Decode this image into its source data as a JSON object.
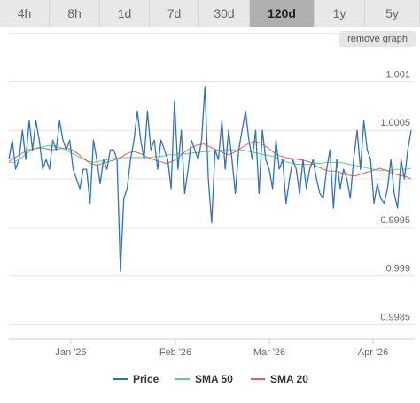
{
  "timeframes": [
    {
      "label": "4h",
      "active": false
    },
    {
      "label": "8h",
      "active": false
    },
    {
      "label": "1d",
      "active": false
    },
    {
      "label": "7d",
      "active": false
    },
    {
      "label": "30d",
      "active": false
    },
    {
      "label": "120d",
      "active": true
    },
    {
      "label": "1y",
      "active": false
    },
    {
      "label": "5y",
      "active": false
    }
  ],
  "remove_graph_label": "remove graph",
  "colors": {
    "price": "#2f73b8",
    "sma50": "#5fcf84",
    "sma20": "#e06060",
    "grid": "#e6e6e6",
    "axis_text": "#666666",
    "tab_bg": "#e8e8e8",
    "tab_active_bg": "#b0b0b0"
  },
  "chart_data": {
    "type": "line",
    "x_tick_labels": [
      "Jan '26",
      "Feb '26",
      "Mar '26",
      "Apr '26"
    ],
    "y_tick_labels": [
      "1.001",
      "1.0005",
      "0.9995",
      "0.999",
      "0.9985"
    ],
    "ylim": [
      0.99835,
      1.00125
    ],
    "grid": true,
    "legend_placement": "bottom",
    "series": [
      {
        "name": "Price",
        "values": [
          1.0002,
          1.0004,
          1.0001,
          1.0002,
          1.0005,
          1.0002,
          1.0006,
          1.0003,
          1.0006,
          1.0004,
          1.0001,
          1.0002,
          1.0001,
          1.0004,
          1.0003,
          1.0006,
          1.0004,
          1.0003,
          1.0004,
          1.0001,
          1.0,
          0.9999,
          1.0001,
          1.0001,
          0.99975,
          1.0004,
          1.0002,
          0.99995,
          1.0002,
          1.0001,
          1.0003,
          1.0003,
          1.0002,
          0.99905,
          0.9998,
          0.9999,
          1.0002,
          1.0004,
          1.0007,
          1.0004,
          1.0002,
          1.0007,
          1.0003,
          1.0004,
          1.0001,
          1.0004,
          1.0003,
          1.0002,
          0.9999,
          1.0008,
          1.0001,
          1.0005,
          0.99985,
          1.0001,
          1.0004,
          1.0003,
          1.0002,
          1.0004,
          1.00095,
          1.0,
          0.99955,
          1.0003,
          1.0002,
          1.0006,
          1.0001,
          1.0005,
          1.0002,
          0.99985,
          1.0003,
          1.0005,
          1.0007,
          1.0004,
          1.0002,
          1.0005,
          0.99985,
          1.0005,
          1.0002,
          1.0001,
          0.9999,
          1.0004,
          1.0001,
          1.0002,
          0.99975,
          1.0,
          1.0002,
          1.0001,
          0.99985,
          1.0002,
          0.9999,
          1.0001,
          1.0002,
          1.0,
          0.99985,
          0.9998,
          1.0001,
          1.0003,
          0.9997,
          1.0002,
          0.9999,
          1.0001,
          1.0,
          0.9998,
          1.0002,
          1.0005,
          1.0001,
          1.0006,
          1.0003,
          1.0002,
          0.99975,
          0.99995,
          0.9998,
          0.99975,
          0.9999,
          1.0002,
          0.99985,
          0.9997,
          1.0002,
          1.0,
          1.0003,
          1.0005
        ]
      },
      {
        "name": "SMA 50",
        "values": [
          1.00017,
          1.00017,
          1.0002,
          1.00023,
          1.00027,
          1.0003,
          1.00032,
          1.00033,
          1.00034,
          1.00034,
          1.00034,
          1.00032,
          1.0003,
          1.00027,
          1.00025,
          1.00022,
          1.0002,
          1.00018,
          1.00017,
          1.00018,
          1.00019,
          1.0002,
          1.00021,
          1.00021,
          1.00022,
          1.00022,
          1.00022,
          1.00022,
          1.00022,
          1.00022,
          1.00022,
          1.00023,
          1.00023,
          1.00024,
          1.00025,
          1.00025,
          1.00026,
          1.00026,
          1.00026,
          1.00027,
          1.00027,
          1.00028,
          1.00028,
          1.00029,
          1.00029,
          1.0003,
          1.0003,
          1.0003,
          1.0003,
          1.0003,
          1.00029,
          1.00028,
          1.00027,
          1.00026,
          1.00025,
          1.00024,
          1.00023,
          1.00021,
          1.00019,
          1.00017,
          1.00016,
          1.00015,
          1.00015,
          1.00015,
          1.00015,
          1.00016,
          1.00016,
          1.00017,
          1.00017,
          1.00017,
          1.00017,
          1.00016,
          1.00015,
          1.00014,
          1.00013,
          1.00012,
          1.00011,
          1.0001,
          1.00009,
          1.00009,
          1.00009,
          1.00009,
          1.0001,
          1.0001,
          1.0001,
          1.00011
        ]
      },
      {
        "name": "SMA 20",
        "values": [
          1.00018,
          1.00022,
          1.00026,
          1.0003,
          1.00031,
          1.00032,
          1.00031,
          1.0003,
          1.00031,
          1.00032,
          1.0003,
          1.00026,
          1.0002,
          1.00016,
          1.00014,
          1.00016,
          1.00018,
          1.0002,
          1.00023,
          1.00027,
          1.00028,
          1.00026,
          1.00022,
          1.0002,
          1.00018,
          1.00016,
          1.00018,
          1.00022,
          1.00028,
          1.00032,
          1.00035,
          1.00036,
          1.00033,
          1.0003,
          1.00027,
          1.00025,
          1.00028,
          1.00032,
          1.00036,
          1.00039,
          1.00037,
          1.00033,
          1.00028,
          1.00024,
          1.00022,
          1.00021,
          1.0002,
          1.00019,
          1.00017,
          1.00013,
          1.0001,
          1.00008,
          1.00008,
          1.00006,
          1.00004,
          1.00003,
          1.00005,
          1.00007,
          1.00009,
          1.00011,
          1.00009,
          1.00006,
          1.00004,
          1.00003,
          1.0
        ]
      }
    ]
  },
  "legend": {
    "price_label": "Price",
    "sma50_label": "SMA 50",
    "sma20_label": "SMA 20"
  }
}
